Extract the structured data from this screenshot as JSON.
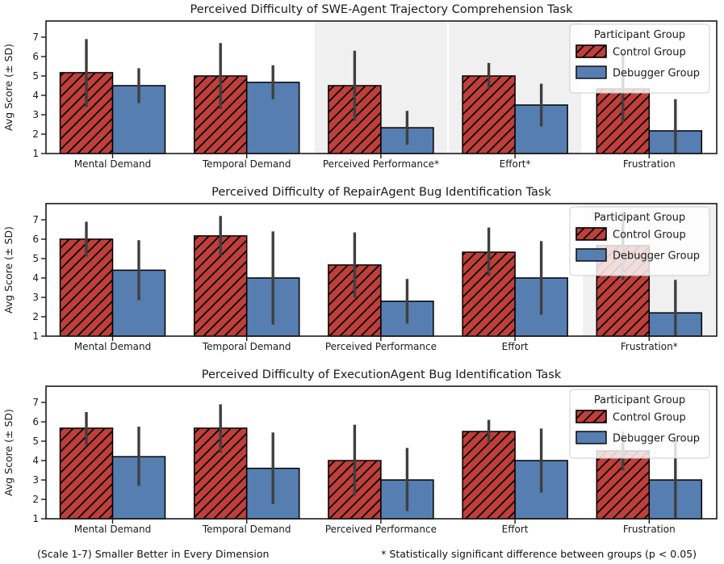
{
  "colors": {
    "control": "#bf3f3a",
    "debugger": "#567eb1",
    "error_bar": "#3f3f3f",
    "significance_band": "#f0f0f0",
    "bar_edge": "#000000",
    "axis": "#1a1a1a",
    "legend_border": "#cccccc"
  },
  "legend": {
    "title": "Participant Group"
  },
  "footer": {
    "left": "(Scale 1-7) Smaller Better in Every Dimension",
    "right": "* Statistically significant difference between groups (p < 0.05)"
  },
  "chart_data": [
    {
      "type": "bar",
      "title": "Perceived Difficulty of SWE-Agent Trajectory Comprehension Task",
      "ylabel": "Avg Score (± SD)",
      "yticks": [
        1,
        2,
        3,
        4,
        5,
        6,
        7
      ],
      "ylim": [
        1,
        7.83
      ],
      "categories": [
        "Mental Demand",
        "Temporal Demand",
        "Perceived Performance*",
        "Effort*",
        "Frustration"
      ],
      "significant_categories": [
        2,
        3
      ],
      "legend": true,
      "series": [
        {
          "name": "Control Group",
          "hatch": true,
          "values": [
            5.17,
            5.0,
            4.5,
            5.0,
            4.33
          ],
          "err_low": [
            3.4,
            3.3,
            2.7,
            4.33,
            2.6
          ],
          "err_high": [
            6.9,
            6.7,
            6.3,
            5.67,
            6.2
          ]
        },
        {
          "name": "Debugger Group",
          "hatch": false,
          "values": [
            4.5,
            4.67,
            2.33,
            3.5,
            2.17
          ],
          "err_low": [
            3.6,
            3.8,
            1.45,
            2.4,
            0.5
          ],
          "err_high": [
            5.4,
            5.55,
            3.2,
            4.6,
            3.8
          ]
        }
      ]
    },
    {
      "type": "bar",
      "title": "Perceived Difficulty of RepairAgent Bug Identification Task",
      "ylabel": "Avg Score (± SD)",
      "yticks": [
        1,
        2,
        3,
        4,
        5,
        6,
        7
      ],
      "ylim": [
        1,
        7.83
      ],
      "categories": [
        "Mental Demand",
        "Temporal Demand",
        "Perceived Performance",
        "Effort",
        "Frustration*"
      ],
      "significant_categories": [
        4
      ],
      "legend": true,
      "series": [
        {
          "name": "Control Group",
          "hatch": true,
          "values": [
            6.0,
            6.17,
            4.67,
            5.33,
            5.67
          ],
          "err_low": [
            5.1,
            5.15,
            3.0,
            4.1,
            3.9
          ],
          "err_high": [
            6.9,
            7.2,
            6.35,
            6.6,
            7.4
          ]
        },
        {
          "name": "Debugger Group",
          "hatch": false,
          "values": [
            4.4,
            4.0,
            2.8,
            4.0,
            2.2
          ],
          "err_low": [
            2.85,
            1.6,
            1.65,
            2.1,
            0.5
          ],
          "err_high": [
            5.95,
            6.4,
            3.95,
            5.9,
            3.9
          ]
        }
      ]
    },
    {
      "type": "bar",
      "title": "Perceived Difficulty of ExecutionAgent Bug Identification Task",
      "ylabel": "Avg Score (± SD)",
      "yticks": [
        1,
        2,
        3,
        4,
        5,
        6,
        7
      ],
      "ylim": [
        1,
        7.83
      ],
      "categories": [
        "Mental Demand",
        "Temporal Demand",
        "Perceived Performance",
        "Effort",
        "Frustration"
      ],
      "significant_categories": [],
      "legend": true,
      "series": [
        {
          "name": "Control Group",
          "hatch": true,
          "values": [
            5.67,
            5.67,
            4.0,
            5.5,
            4.5
          ],
          "err_low": [
            4.8,
            4.4,
            2.2,
            4.9,
            3.5
          ],
          "err_high": [
            6.5,
            6.9,
            5.85,
            6.1,
            5.5
          ]
        },
        {
          "name": "Debugger Group",
          "hatch": false,
          "values": [
            4.2,
            3.6,
            3.0,
            4.0,
            3.0
          ],
          "err_low": [
            2.7,
            1.75,
            1.4,
            2.35,
            0.95
          ],
          "err_high": [
            5.75,
            5.45,
            4.65,
            5.65,
            5.05
          ]
        }
      ]
    }
  ]
}
